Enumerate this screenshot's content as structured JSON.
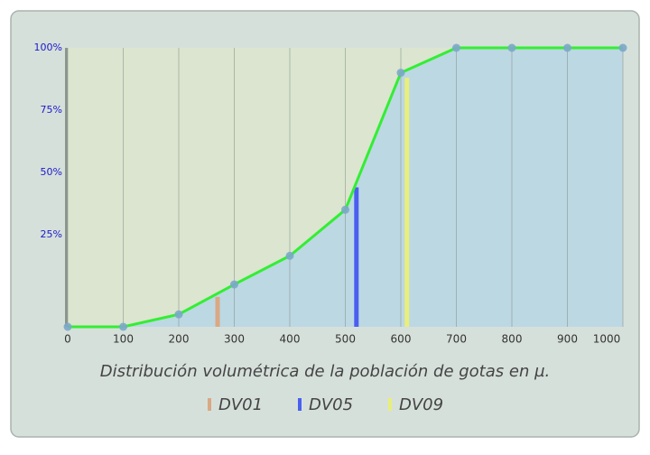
{
  "chart_data": {
    "type": "line",
    "xlabel": "Distribución volumétrica de la población de gotas en µ.",
    "x": [
      0,
      100,
      200,
      300,
      400,
      500,
      600,
      700,
      800,
      900,
      1000
    ],
    "series": [
      {
        "color": "#33ee33",
        "values": [
          -12,
          -12,
          -7,
          5,
          16.5,
          35,
          90,
          100,
          100,
          100,
          100
        ]
      }
    ],
    "markers": [
      {
        "name": "DV01",
        "x": 270,
        "value": 0,
        "color": "#d9a884"
      },
      {
        "name": "DV05",
        "x": 520,
        "value": 44,
        "color": "#4a5ff0"
      },
      {
        "name": "DV09",
        "x": 611,
        "value": 88,
        "color": "#e8ef7a"
      }
    ],
    "xlim": [
      0,
      1000
    ],
    "ylim": [
      -12,
      100
    ],
    "xticks": [
      0,
      100,
      200,
      300,
      400,
      500,
      600,
      700,
      800,
      900,
      1000
    ],
    "yticks": [
      {
        "value": 25,
        "label": "25%"
      },
      {
        "value": 50,
        "label": "50%"
      },
      {
        "value": 75,
        "label": "75%"
      },
      {
        "value": 100,
        "label": "100%"
      }
    ],
    "grid": true
  }
}
